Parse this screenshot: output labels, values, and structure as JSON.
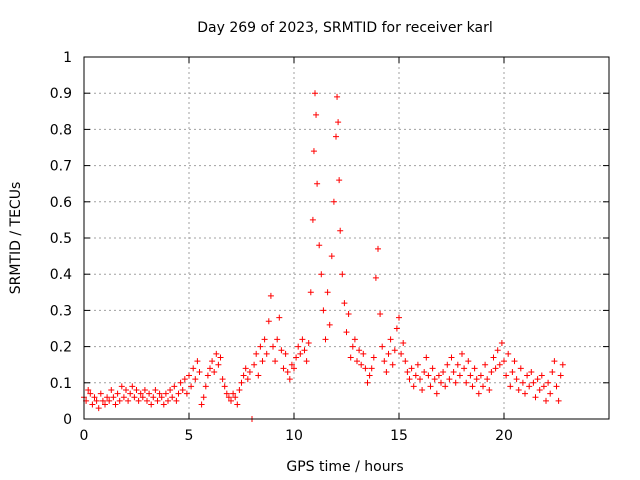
{
  "chart_data": {
    "type": "scatter",
    "title": "Day 269 of 2023, SRMTID for receiver karl",
    "xlabel": "GPS time / hours",
    "ylabel": "SRMTID / TECUs",
    "xlim": [
      0,
      25
    ],
    "ylim": [
      0,
      1
    ],
    "x_ticks": [
      0,
      5,
      10,
      15,
      20
    ],
    "x_tick_labels": [
      "0",
      "5",
      "10",
      "15",
      "20"
    ],
    "y_ticks": [
      0,
      0.1,
      0.2,
      0.3,
      0.4,
      0.5,
      0.6,
      0.7,
      0.8,
      0.9,
      1
    ],
    "y_tick_labels": [
      "0",
      "0.1",
      "0.2",
      "0.3",
      "0.4",
      "0.5",
      "0.6",
      "0.7",
      "0.8",
      "0.9",
      "1"
    ],
    "grid": true,
    "marker": "plus",
    "color": "#ff0000",
    "series": [
      {
        "name": "SRMTID",
        "points": [
          [
            0.0,
            0.06
          ],
          [
            0.1,
            0.05
          ],
          [
            0.2,
            0.08
          ],
          [
            0.3,
            0.07
          ],
          [
            0.4,
            0.04
          ],
          [
            0.5,
            0.06
          ],
          [
            0.6,
            0.05
          ],
          [
            0.7,
            0.03
          ],
          [
            0.8,
            0.07
          ],
          [
            0.9,
            0.05
          ],
          [
            1.0,
            0.04
          ],
          [
            1.1,
            0.06
          ],
          [
            1.2,
            0.05
          ],
          [
            1.3,
            0.08
          ],
          [
            1.4,
            0.06
          ],
          [
            1.5,
            0.04
          ],
          [
            1.6,
            0.07
          ],
          [
            1.7,
            0.05
          ],
          [
            1.8,
            0.09
          ],
          [
            1.9,
            0.06
          ],
          [
            2.0,
            0.08
          ],
          [
            2.1,
            0.05
          ],
          [
            2.2,
            0.07
          ],
          [
            2.3,
            0.09
          ],
          [
            2.4,
            0.06
          ],
          [
            2.5,
            0.08
          ],
          [
            2.6,
            0.05
          ],
          [
            2.7,
            0.07
          ],
          [
            2.8,
            0.06
          ],
          [
            2.9,
            0.08
          ],
          [
            3.0,
            0.05
          ],
          [
            3.1,
            0.07
          ],
          [
            3.2,
            0.04
          ],
          [
            3.3,
            0.06
          ],
          [
            3.4,
            0.08
          ],
          [
            3.5,
            0.05
          ],
          [
            3.6,
            0.07
          ],
          [
            3.7,
            0.06
          ],
          [
            3.8,
            0.04
          ],
          [
            3.9,
            0.07
          ],
          [
            4.0,
            0.05
          ],
          [
            4.1,
            0.08
          ],
          [
            4.2,
            0.06
          ],
          [
            4.3,
            0.09
          ],
          [
            4.4,
            0.05
          ],
          [
            4.5,
            0.07
          ],
          [
            4.6,
            0.1
          ],
          [
            4.7,
            0.08
          ],
          [
            4.8,
            0.11
          ],
          [
            4.9,
            0.07
          ],
          [
            5.0,
            0.12
          ],
          [
            5.1,
            0.09
          ],
          [
            5.2,
            0.14
          ],
          [
            5.3,
            0.11
          ],
          [
            5.4,
            0.16
          ],
          [
            5.5,
            0.13
          ],
          [
            5.6,
            0.04
          ],
          [
            5.7,
            0.06
          ],
          [
            5.8,
            0.09
          ],
          [
            5.9,
            0.12
          ],
          [
            6.0,
            0.14
          ],
          [
            6.1,
            0.16
          ],
          [
            6.2,
            0.13
          ],
          [
            6.3,
            0.18
          ],
          [
            6.4,
            0.15
          ],
          [
            6.5,
            0.17
          ],
          [
            6.6,
            0.11
          ],
          [
            6.7,
            0.09
          ],
          [
            6.8,
            0.07
          ],
          [
            6.9,
            0.06
          ],
          [
            7.0,
            0.05
          ],
          [
            7.1,
            0.07
          ],
          [
            7.2,
            0.06
          ],
          [
            7.3,
            0.04
          ],
          [
            7.4,
            0.08
          ],
          [
            7.5,
            0.1
          ],
          [
            7.6,
            0.12
          ],
          [
            7.7,
            0.14
          ],
          [
            7.8,
            0.11
          ],
          [
            7.9,
            0.13
          ],
          [
            8.0,
            0.0
          ],
          [
            8.1,
            0.15
          ],
          [
            8.2,
            0.18
          ],
          [
            8.3,
            0.12
          ],
          [
            8.4,
            0.2
          ],
          [
            8.5,
            0.16
          ],
          [
            8.6,
            0.22
          ],
          [
            8.7,
            0.18
          ],
          [
            8.8,
            0.27
          ],
          [
            8.9,
            0.34
          ],
          [
            9.0,
            0.2
          ],
          [
            9.1,
            0.16
          ],
          [
            9.2,
            0.22
          ],
          [
            9.3,
            0.28
          ],
          [
            9.4,
            0.19
          ],
          [
            9.5,
            0.14
          ],
          [
            9.6,
            0.18
          ],
          [
            9.7,
            0.13
          ],
          [
            9.8,
            0.11
          ],
          [
            9.9,
            0.15
          ],
          [
            10.0,
            0.14
          ],
          [
            10.1,
            0.17
          ],
          [
            10.2,
            0.2
          ],
          [
            10.3,
            0.18
          ],
          [
            10.4,
            0.22
          ],
          [
            10.5,
            0.19
          ],
          [
            10.6,
            0.16
          ],
          [
            10.7,
            0.21
          ],
          [
            10.8,
            0.35
          ],
          [
            10.9,
            0.55
          ],
          [
            10.95,
            0.74
          ],
          [
            11.0,
            0.9
          ],
          [
            11.05,
            0.84
          ],
          [
            11.1,
            0.65
          ],
          [
            11.2,
            0.48
          ],
          [
            11.3,
            0.4
          ],
          [
            11.4,
            0.3
          ],
          [
            11.5,
            0.22
          ],
          [
            11.6,
            0.35
          ],
          [
            11.7,
            0.26
          ],
          [
            11.8,
            0.45
          ],
          [
            11.9,
            0.6
          ],
          [
            12.0,
            0.78
          ],
          [
            12.05,
            0.89
          ],
          [
            12.1,
            0.82
          ],
          [
            12.15,
            0.66
          ],
          [
            12.2,
            0.52
          ],
          [
            12.3,
            0.4
          ],
          [
            12.4,
            0.32
          ],
          [
            12.5,
            0.24
          ],
          [
            12.6,
            0.29
          ],
          [
            12.7,
            0.17
          ],
          [
            12.8,
            0.2
          ],
          [
            12.9,
            0.22
          ],
          [
            13.0,
            0.16
          ],
          [
            13.1,
            0.19
          ],
          [
            13.2,
            0.15
          ],
          [
            13.3,
            0.18
          ],
          [
            13.4,
            0.14
          ],
          [
            13.5,
            0.1
          ],
          [
            13.6,
            0.12
          ],
          [
            13.7,
            0.14
          ],
          [
            13.8,
            0.17
          ],
          [
            13.9,
            0.39
          ],
          [
            14.0,
            0.47
          ],
          [
            14.1,
            0.29
          ],
          [
            14.2,
            0.2
          ],
          [
            14.3,
            0.16
          ],
          [
            14.4,
            0.13
          ],
          [
            14.5,
            0.18
          ],
          [
            14.6,
            0.22
          ],
          [
            14.7,
            0.15
          ],
          [
            14.8,
            0.19
          ],
          [
            14.9,
            0.25
          ],
          [
            15.0,
            0.28
          ],
          [
            15.1,
            0.18
          ],
          [
            15.2,
            0.21
          ],
          [
            15.3,
            0.16
          ],
          [
            15.4,
            0.13
          ],
          [
            15.5,
            0.11
          ],
          [
            15.6,
            0.14
          ],
          [
            15.7,
            0.09
          ],
          [
            15.8,
            0.12
          ],
          [
            15.9,
            0.15
          ],
          [
            16.0,
            0.11
          ],
          [
            16.1,
            0.08
          ],
          [
            16.2,
            0.13
          ],
          [
            16.3,
            0.17
          ],
          [
            16.4,
            0.12
          ],
          [
            16.5,
            0.09
          ],
          [
            16.6,
            0.14
          ],
          [
            16.7,
            0.11
          ],
          [
            16.8,
            0.07
          ],
          [
            16.9,
            0.12
          ],
          [
            17.0,
            0.1
          ],
          [
            17.1,
            0.13
          ],
          [
            17.2,
            0.09
          ],
          [
            17.3,
            0.15
          ],
          [
            17.4,
            0.11
          ],
          [
            17.5,
            0.17
          ],
          [
            17.6,
            0.13
          ],
          [
            17.7,
            0.1
          ],
          [
            17.8,
            0.15
          ],
          [
            17.9,
            0.12
          ],
          [
            18.0,
            0.18
          ],
          [
            18.1,
            0.14
          ],
          [
            18.2,
            0.1
          ],
          [
            18.3,
            0.16
          ],
          [
            18.4,
            0.12
          ],
          [
            18.5,
            0.09
          ],
          [
            18.6,
            0.14
          ],
          [
            18.7,
            0.11
          ],
          [
            18.8,
            0.07
          ],
          [
            18.9,
            0.12
          ],
          [
            19.0,
            0.09
          ],
          [
            19.1,
            0.15
          ],
          [
            19.2,
            0.11
          ],
          [
            19.3,
            0.08
          ],
          [
            19.4,
            0.13
          ],
          [
            19.5,
            0.17
          ],
          [
            19.6,
            0.14
          ],
          [
            19.7,
            0.19
          ],
          [
            19.8,
            0.15
          ],
          [
            19.9,
            0.21
          ],
          [
            20.0,
            0.16
          ],
          [
            20.1,
            0.12
          ],
          [
            20.2,
            0.18
          ],
          [
            20.3,
            0.09
          ],
          [
            20.4,
            0.13
          ],
          [
            20.5,
            0.16
          ],
          [
            20.6,
            0.11
          ],
          [
            20.7,
            0.08
          ],
          [
            20.8,
            0.14
          ],
          [
            20.9,
            0.1
          ],
          [
            21.0,
            0.07
          ],
          [
            21.1,
            0.12
          ],
          [
            21.2,
            0.09
          ],
          [
            21.3,
            0.13
          ],
          [
            21.4,
            0.1
          ],
          [
            21.5,
            0.06
          ],
          [
            21.6,
            0.11
          ],
          [
            21.7,
            0.08
          ],
          [
            21.8,
            0.12
          ],
          [
            21.9,
            0.09
          ],
          [
            22.0,
            0.05
          ],
          [
            22.1,
            0.1
          ],
          [
            22.2,
            0.07
          ],
          [
            22.3,
            0.13
          ],
          [
            22.4,
            0.16
          ],
          [
            22.5,
            0.09
          ],
          [
            22.6,
            0.05
          ],
          [
            22.7,
            0.12
          ],
          [
            22.8,
            0.15
          ]
        ]
      }
    ]
  }
}
